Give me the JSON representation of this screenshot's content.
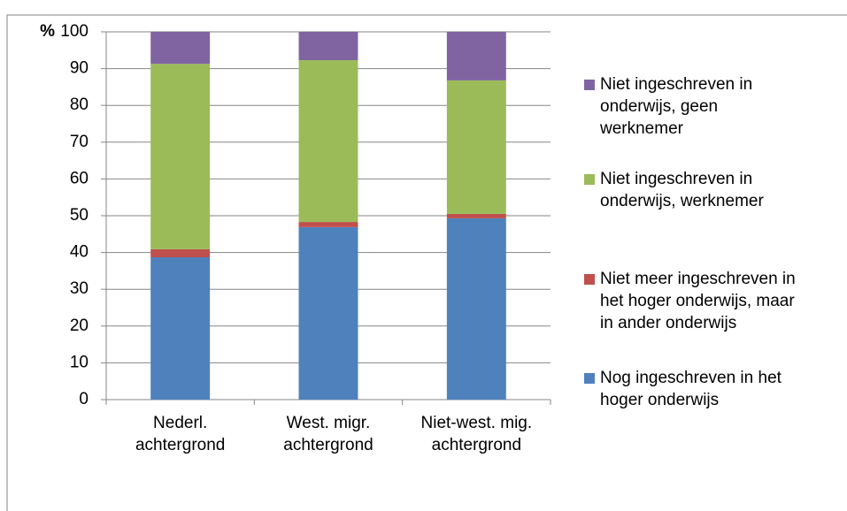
{
  "chart_data": {
    "type": "stacked_bar",
    "y_axis_label": "%",
    "categories": [
      "Nederl. achtergrond",
      "West. migr. achtergrond",
      "Niet-west. mig. achtergrond"
    ],
    "series": [
      {
        "name": "Nog ingeschreven in het hoger onderwijs",
        "color": "#4f81bd",
        "values": [
          38.7,
          46.9,
          49.3
        ]
      },
      {
        "name": "Niet meer ingeschreven in het hoger onderwijs, maar in ander onderwijs",
        "color": "#c0504d",
        "values": [
          2.2,
          1.4,
          1.2
        ]
      },
      {
        "name": "Niet ingeschreven in onderwijs, werknemer",
        "color": "#9bbb59",
        "values": [
          50.4,
          44.0,
          36.3
        ]
      },
      {
        "name": "Niet ingeschreven in onderwijs, geen werknemer",
        "color": "#8064a2",
        "values": [
          8.7,
          7.7,
          13.2
        ]
      }
    ],
    "ylim": [
      0,
      100
    ],
    "yticks": [
      0,
      10,
      20,
      30,
      40,
      50,
      60,
      70,
      80,
      90,
      100
    ],
    "grid": true
  }
}
